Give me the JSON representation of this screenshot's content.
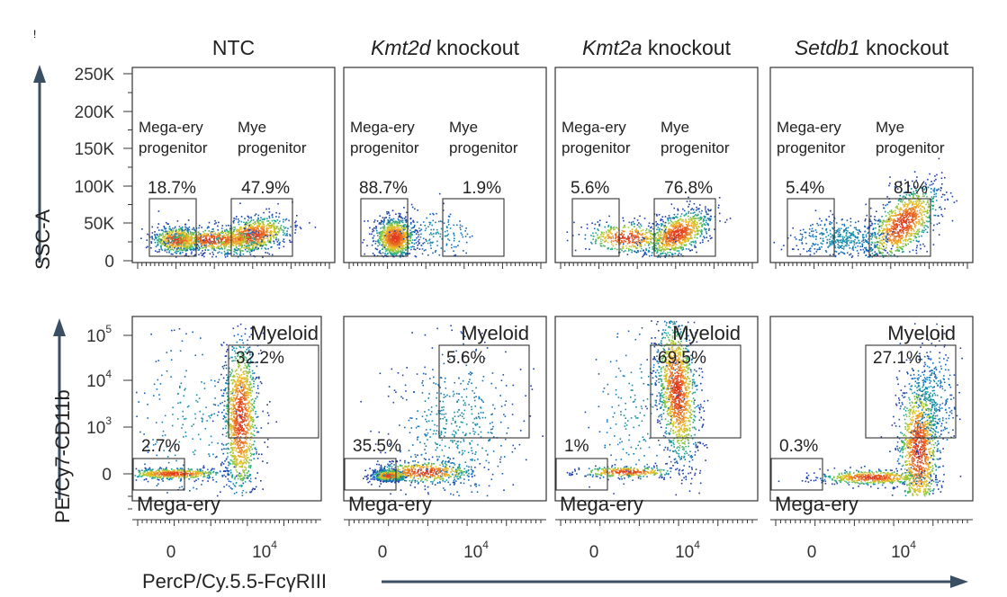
{
  "figure": {
    "marker": "!",
    "x_axis_label": "PercP/Cy.5.5-FcγRIII",
    "top_row_y_axis_label": "SSC-A",
    "bottom_row_y_axis_label": "PE/Cy7-CD11b",
    "colors": {
      "axis_arrow": "#3b4f63",
      "frame": "#333333",
      "density_low": "#1f3fb0",
      "density_high": "#e03a1e"
    }
  },
  "chart_data": [
    {
      "type": "scatter",
      "subtype": "flow-cytometry-density",
      "row": "top",
      "ylabel": "SSC-A",
      "y_ticks": [
        "0",
        "50K",
        "100K",
        "150K",
        "200K",
        "250K"
      ],
      "y_range": [
        0,
        250000
      ],
      "panels": [
        {
          "title_italic": "",
          "title_rest": "NTC",
          "gates": [
            {
              "label_lines": [
                "Mega-ery",
                "progenitor"
              ],
              "percent": "18.7%"
            },
            {
              "label_lines": [
                "Mye",
                "progenitor"
              ],
              "percent": "47.9%"
            }
          ]
        },
        {
          "title_italic": "Kmt2d",
          "title_rest": " knockout",
          "gates": [
            {
              "label_lines": [
                "Mega-ery",
                "progenitor"
              ],
              "percent": "88.7%"
            },
            {
              "label_lines": [
                "Mye",
                "progenitor"
              ],
              "percent": "1.9%"
            }
          ]
        },
        {
          "title_italic": "Kmt2a",
          "title_rest": " knockout",
          "gates": [
            {
              "label_lines": [
                "Mega-ery",
                "progenitor"
              ],
              "percent": "5.6%"
            },
            {
              "label_lines": [
                "Mye",
                "progenitor"
              ],
              "percent": "76.8%"
            }
          ]
        },
        {
          "title_italic": "Setdb1",
          "title_rest": " knockout",
          "gates": [
            {
              "label_lines": [
                "Mega-ery",
                "progenitor"
              ],
              "percent": "5.4%"
            },
            {
              "label_lines": [
                "Mye",
                "progenitor"
              ],
              "percent": "81%"
            }
          ]
        }
      ]
    },
    {
      "type": "scatter",
      "subtype": "flow-cytometry-density",
      "row": "bottom",
      "xlabel": "PercP/Cy.5.5-FcγRIII",
      "ylabel": "PE/Cy7-CD11b",
      "x_ticks": [
        {
          "base": "0",
          "exp": ""
        },
        {
          "base": "10",
          "exp": "4"
        }
      ],
      "y_ticks": [
        {
          "base": "0",
          "exp": ""
        },
        {
          "base": "10",
          "exp": "3"
        },
        {
          "base": "10",
          "exp": "4"
        },
        {
          "base": "10",
          "exp": "5"
        }
      ],
      "panels": [
        {
          "gates": [
            {
              "label": "Myeloid",
              "percent": "32.2%"
            },
            {
              "label": "Mega-ery",
              "percent": "2.7%"
            }
          ]
        },
        {
          "gates": [
            {
              "label": "Myeloid",
              "percent": "5.6%"
            },
            {
              "label": "Mega-ery",
              "percent": "35.5%"
            }
          ]
        },
        {
          "gates": [
            {
              "label": "Myeloid",
              "percent": "69.5%"
            },
            {
              "label": "Mega-ery",
              "percent": "1%"
            }
          ]
        },
        {
          "gates": [
            {
              "label": "Myeloid",
              "percent": "27.1%"
            },
            {
              "label": "Mega-ery",
              "percent": "0.3%"
            }
          ]
        }
      ]
    }
  ]
}
